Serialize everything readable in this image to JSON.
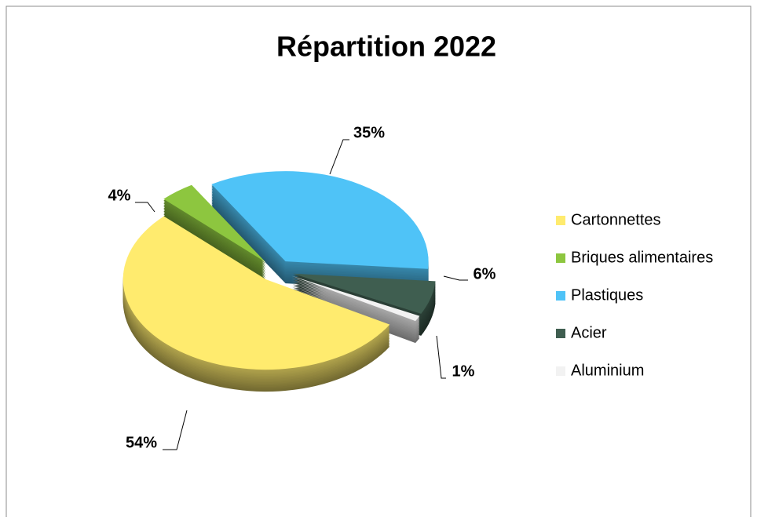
{
  "chart_data": {
    "type": "pie",
    "title": "Répartition 2022",
    "categories": [
      "Cartonnettes",
      "Briques alimentaires",
      "Plastiques",
      "Acier",
      "Aluminium"
    ],
    "values": [
      54,
      4,
      35,
      6,
      1
    ],
    "value_labels": [
      "54%",
      "4%",
      "35%",
      "6%",
      "1%"
    ],
    "colors": [
      "#FFEB6E",
      "#8DC63F",
      "#4FC3F7",
      "#3F5E50",
      "#F2F2F2"
    ],
    "legend": "right"
  }
}
